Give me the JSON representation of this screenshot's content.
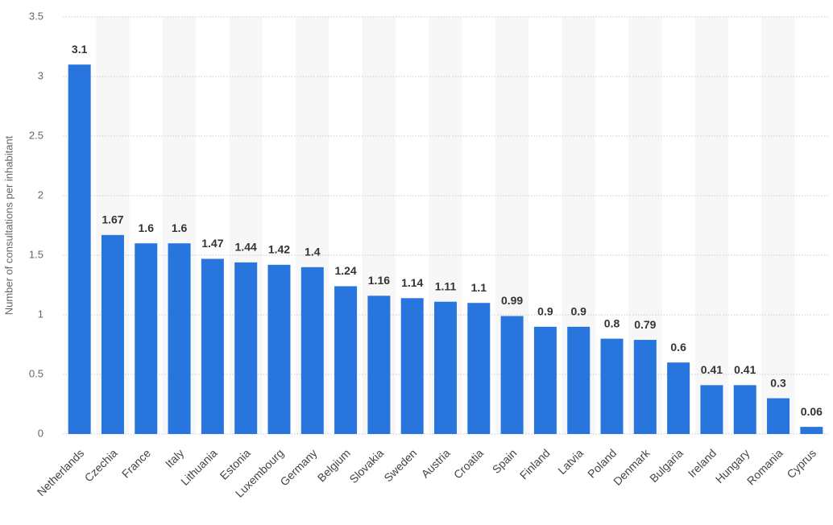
{
  "chart_data": {
    "type": "bar",
    "y_label": "Number of consultations per inhabitant",
    "categories": [
      "Netherlands",
      "Czechia",
      "France",
      "Italy",
      "Lithuania",
      "Estonia",
      "Luxembourg",
      "Germany",
      "Belgium",
      "Slovakia",
      "Sweden",
      "Austria",
      "Croatia",
      "Spain",
      "Finland",
      "Latvia",
      "Poland",
      "Denmark",
      "Bulgaria",
      "Ireland",
      "Hungary",
      "Romania",
      "Cyprus"
    ],
    "values": [
      3.1,
      1.67,
      1.6,
      1.6,
      1.47,
      1.44,
      1.42,
      1.4,
      1.24,
      1.16,
      1.14,
      1.11,
      1.1,
      0.99,
      0.9,
      0.9,
      0.8,
      0.79,
      0.6,
      0.41,
      0.41,
      0.3,
      0.06
    ],
    "color": "#2876dd",
    "ylim": [
      0,
      3.5
    ],
    "yticks": [
      0,
      0.5,
      1,
      1.5,
      2,
      2.5,
      3,
      3.5
    ],
    "grid": true
  }
}
